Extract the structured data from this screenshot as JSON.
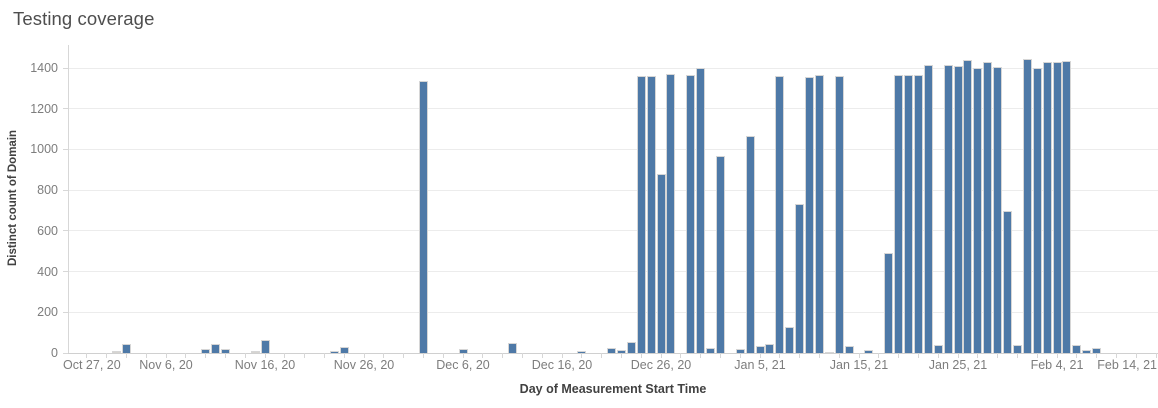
{
  "title": "Testing coverage",
  "colors": {
    "bar": "#4e79a7",
    "bar_muted": "#d6d4d1",
    "bar_border": "#d6d6d6",
    "gridline": "#ececec",
    "axis_line": "#d0d0d0",
    "tick_label": "#7d7d7d",
    "axis_title": "#414141",
    "title": "#4e4e4e",
    "background": "#ffffff"
  },
  "chart_data": {
    "type": "bar",
    "title": "Testing coverage",
    "xlabel": "Day of Measurement Start Time",
    "ylabel": "Distinct count of Domain",
    "ylim": [
      0,
      1450
    ],
    "grid": "horizontal",
    "legend": "none",
    "y_ticks": [
      0,
      200,
      400,
      600,
      800,
      1000,
      1200,
      1400
    ],
    "x_axis_unit": "day",
    "x_day_zero": "Oct 27, 20",
    "x_ticks": [
      {
        "day": 0,
        "label": "Oct 27, 20"
      },
      {
        "day": 10,
        "label": "Nov 6, 20"
      },
      {
        "day": 20,
        "label": "Nov 16, 20"
      },
      {
        "day": 30,
        "label": "Nov 26, 20"
      },
      {
        "day": 40,
        "label": "Dec 6, 20"
      },
      {
        "day": 50,
        "label": "Dec 16, 20"
      },
      {
        "day": 60,
        "label": "Dec 26, 20"
      },
      {
        "day": 70,
        "label": "Jan 5, 21"
      },
      {
        "day": 80,
        "label": "Jan 15, 21"
      },
      {
        "day": 90,
        "label": "Jan 25, 21"
      },
      {
        "day": 100,
        "label": "Feb 4, 21"
      },
      {
        "day": 110,
        "label": "Feb 14, 21"
      }
    ],
    "bars": [
      {
        "date": "Nov 1, 20",
        "day": 5,
        "value": 8,
        "muted": true
      },
      {
        "date": "Nov 2, 20",
        "day": 6,
        "value": 45
      },
      {
        "date": "Nov 10, 20",
        "day": 14,
        "value": 22
      },
      {
        "date": "Nov 11, 20",
        "day": 15,
        "value": 42
      },
      {
        "date": "Nov 12, 20",
        "day": 16,
        "value": 22
      },
      {
        "date": "Nov 15, 20",
        "day": 19,
        "value": 8,
        "muted": true
      },
      {
        "date": "Nov 16, 20",
        "day": 20,
        "value": 62
      },
      {
        "date": "Nov 23, 20",
        "day": 27,
        "value": 10
      },
      {
        "date": "Nov 24, 20",
        "day": 28,
        "value": 30
      },
      {
        "date": "Dec 2, 20",
        "day": 36,
        "value": 1335
      },
      {
        "date": "Dec 6, 20",
        "day": 40,
        "value": 20
      },
      {
        "date": "Dec 11, 20",
        "day": 45,
        "value": 48
      },
      {
        "date": "Dec 18, 20",
        "day": 52,
        "value": 8
      },
      {
        "date": "Dec 21, 20",
        "day": 55,
        "value": 25
      },
      {
        "date": "Dec 22, 20",
        "day": 56,
        "value": 15
      },
      {
        "date": "Dec 23, 20",
        "day": 57,
        "value": 55
      },
      {
        "date": "Dec 24, 20",
        "day": 58,
        "value": 1360
      },
      {
        "date": "Dec 25, 20",
        "day": 59,
        "value": 1360
      },
      {
        "date": "Dec 26, 20",
        "day": 60,
        "value": 880
      },
      {
        "date": "Dec 27, 20",
        "day": 61,
        "value": 1370
      },
      {
        "date": "Dec 29, 20",
        "day": 63,
        "value": 1368
      },
      {
        "date": "Dec 30, 20",
        "day": 64,
        "value": 1400
      },
      {
        "date": "Dec 31, 20",
        "day": 65,
        "value": 25
      },
      {
        "date": "Jan 1, 21",
        "day": 66,
        "value": 966
      },
      {
        "date": "Jan 3, 21",
        "day": 68,
        "value": 20
      },
      {
        "date": "Jan 4, 21",
        "day": 69,
        "value": 1064
      },
      {
        "date": "Jan 5, 21",
        "day": 70,
        "value": 33
      },
      {
        "date": "Jan 6, 21",
        "day": 71,
        "value": 46
      },
      {
        "date": "Jan 7, 21",
        "day": 72,
        "value": 1362
      },
      {
        "date": "Jan 8, 21",
        "day": 73,
        "value": 126
      },
      {
        "date": "Jan 9, 21",
        "day": 74,
        "value": 732
      },
      {
        "date": "Jan 10, 21",
        "day": 75,
        "value": 1355
      },
      {
        "date": "Jan 11, 21",
        "day": 76,
        "value": 1365
      },
      {
        "date": "Jan 12, 21",
        "day": 77,
        "value": 6
      },
      {
        "date": "Jan 13, 21",
        "day": 78,
        "value": 1362
      },
      {
        "date": "Jan 14, 21",
        "day": 79,
        "value": 33
      },
      {
        "date": "Jan 16, 21",
        "day": 81,
        "value": 13
      },
      {
        "date": "Jan 18, 21",
        "day": 83,
        "value": 491
      },
      {
        "date": "Jan 19, 21",
        "day": 84,
        "value": 1367
      },
      {
        "date": "Jan 20, 21",
        "day": 85,
        "value": 1367
      },
      {
        "date": "Jan 21, 21",
        "day": 86,
        "value": 1367
      },
      {
        "date": "Jan 22, 21",
        "day": 87,
        "value": 1413
      },
      {
        "date": "Jan 23, 21",
        "day": 88,
        "value": 40
      },
      {
        "date": "Jan 24, 21",
        "day": 89,
        "value": 1413
      },
      {
        "date": "Jan 25, 21",
        "day": 90,
        "value": 1408
      },
      {
        "date": "Jan 26, 21",
        "day": 91,
        "value": 1437
      },
      {
        "date": "Jan 27, 21",
        "day": 92,
        "value": 1400
      },
      {
        "date": "Jan 28, 21",
        "day": 93,
        "value": 1430
      },
      {
        "date": "Jan 29, 21",
        "day": 94,
        "value": 1405
      },
      {
        "date": "Jan 30, 21",
        "day": 95,
        "value": 696
      },
      {
        "date": "Jan 31, 21",
        "day": 96,
        "value": 41
      },
      {
        "date": "Feb 1, 21",
        "day": 97,
        "value": 1444
      },
      {
        "date": "Feb 2, 21",
        "day": 98,
        "value": 1400
      },
      {
        "date": "Feb 3, 21",
        "day": 99,
        "value": 1428
      },
      {
        "date": "Feb 4, 21",
        "day": 100,
        "value": 1428
      },
      {
        "date": "Feb 5, 21",
        "day": 101,
        "value": 1434
      },
      {
        "date": "Feb 6, 21",
        "day": 102,
        "value": 41
      },
      {
        "date": "Feb 7, 21",
        "day": 103,
        "value": 15
      },
      {
        "date": "Feb 8, 21",
        "day": 104,
        "value": 25
      }
    ]
  }
}
